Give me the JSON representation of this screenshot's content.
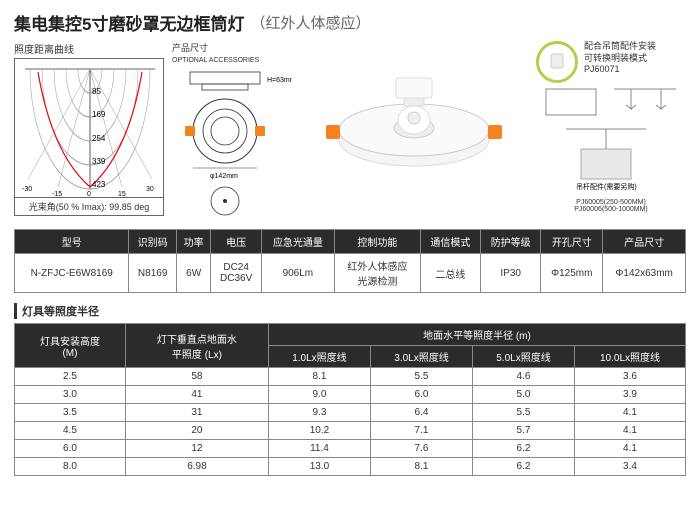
{
  "title": {
    "main": "集电集控5寸磨砂罩无边框筒灯",
    "sub": "（红外人体感应）"
  },
  "polar": {
    "label": "照度距离曲线",
    "rings": [
      "85",
      "169",
      "254",
      "339",
      "423"
    ],
    "angles": [
      "-30",
      "-15",
      "0",
      "15",
      "30"
    ],
    "beam": "光束角(50 % Imax): 99.85 deg"
  },
  "dim": {
    "label": "产品尺寸",
    "sublabel": "OPTIONAL ACCESSORIES",
    "h": "H=63mm",
    "w": "φ142mm"
  },
  "accessory": {
    "text1": "配合吊筒配件安装",
    "text2": "可转换明装模式",
    "code": "PJ60071",
    "bottom": "吊杆配件(需要另购)",
    "codes": "PJ60005(250-500MM)\nPJ60006(500-1000MM)"
  },
  "spec": {
    "headers": [
      "型号",
      "识别码",
      "功率",
      "电压",
      "应急光通量",
      "控制功能",
      "通信模式",
      "防护等级",
      "开孔尺寸",
      "产品尺寸"
    ],
    "row": [
      "N-ZFJC-E6W8169",
      "N8169",
      "6W",
      "DC24\nDC36V",
      "906Lm",
      "红外人体感应\n光源检测",
      "二总线",
      "IP30",
      "Φ125mm",
      "Φ142x63mm"
    ]
  },
  "lux": {
    "title": "灯具等照度半径",
    "h1": [
      "灯具安装高度\n(M)",
      "灯下垂直点地面水\n平照度 (Lx)",
      "地面水平等照度半径 (m)"
    ],
    "h2": [
      "1.0Lx照度线",
      "3.0Lx照度线",
      "5.0Lx照度线",
      "10.0Lx照度线"
    ],
    "rows": [
      [
        "2.5",
        "58",
        "8.1",
        "5.5",
        "4.6",
        "3.6"
      ],
      [
        "3.0",
        "41",
        "9.0",
        "6.0",
        "5.0",
        "3.9"
      ],
      [
        "3.5",
        "31",
        "9.3",
        "6.4",
        "5.5",
        "4.1"
      ],
      [
        "4.5",
        "20",
        "10.2",
        "7.1",
        "5.7",
        "4.1"
      ],
      [
        "6.0",
        "12",
        "11.4",
        "7.6",
        "6.2",
        "4.1"
      ],
      [
        "8.0",
        "6.98",
        "13.0",
        "8.1",
        "6.2",
        "3.4"
      ]
    ]
  },
  "colors": {
    "accent": "#b8cc4e",
    "header": "#2b2b2b",
    "orange": "#f58220"
  }
}
